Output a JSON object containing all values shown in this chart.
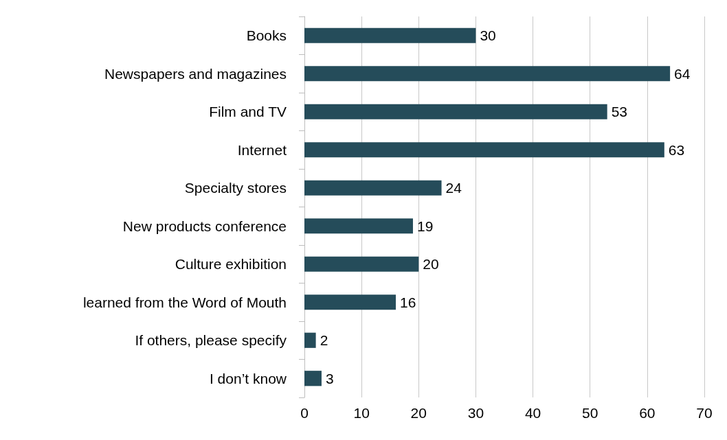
{
  "chart_data": {
    "type": "bar",
    "orientation": "horizontal",
    "categories": [
      "Books",
      "Newspapers and magazines",
      "Film and TV",
      "Internet",
      "Specialty stores",
      "New products conference",
      "Culture exhibition",
      "learned from the Word of Mouth",
      "If others, please specify",
      "I don’t know"
    ],
    "values": [
      30,
      64,
      53,
      63,
      24,
      19,
      20,
      16,
      2,
      3
    ],
    "color": "#254c5a",
    "xlim": [
      0,
      70
    ],
    "xticks": [
      0,
      10,
      20,
      30,
      40,
      50,
      60,
      70
    ],
    "grid": "x",
    "data_labels": true
  }
}
